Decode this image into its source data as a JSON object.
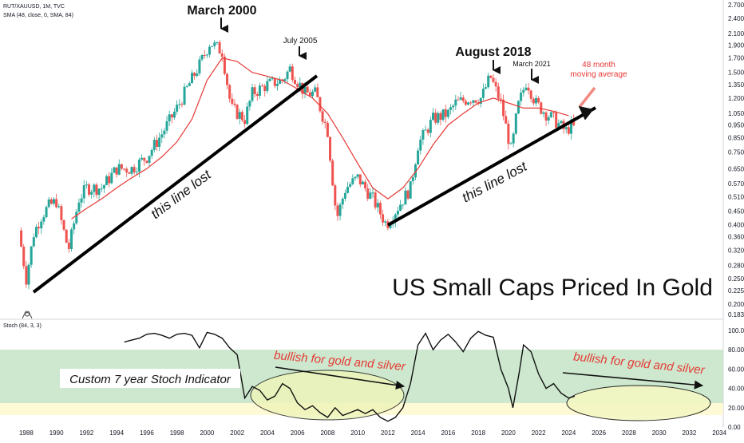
{
  "header": {
    "symbol_line": "RUT/XAUUSD, 1M, TVC",
    "sma_line": "SMA (48, close, 0, SMA, 84)",
    "stoch_line": "Stoch (84, 3, 3)"
  },
  "colors": {
    "up": "#26a69a",
    "down": "#ef5350",
    "sma": "#e53935",
    "annotation_red": "#e53935",
    "stoch_band": "#c8e6c9",
    "ellipse_fill": "#f0f4c3"
  },
  "chart_data": [
    {
      "type": "line",
      "name": "price",
      "scale": "log",
      "x": [
        1987.5,
        1988.0,
        1988.5,
        1989.0,
        1989.5,
        1990.0,
        1990.8,
        1991.5,
        1992.0,
        1993.0,
        1994.0,
        1995.0,
        1996.0,
        1997.0,
        1998.0,
        1998.8,
        1999.5,
        2000.2,
        2001.0,
        2001.6,
        2002.5,
        2003.0,
        2004.0,
        2005.0,
        2005.5,
        2006.5,
        2007.2,
        2008.0,
        2008.6,
        2009.2,
        2010.0,
        2011.0,
        2011.9,
        2012.5,
        2013.5,
        2014.0,
        2015.0,
        2016.0,
        2016.5,
        2017.5,
        2018.2,
        2018.8,
        2019.5,
        2020.2,
        2020.6,
        2021.2,
        2021.8,
        2022.5,
        2023.0,
        2023.8,
        2024.2,
        2024.5
      ],
      "y": [
        0.38,
        0.25,
        0.37,
        0.43,
        0.47,
        0.49,
        0.32,
        0.5,
        0.55,
        0.55,
        0.65,
        0.65,
        0.72,
        0.88,
        1.1,
        1.35,
        1.6,
        1.95,
        1.8,
        1.1,
        1.0,
        1.25,
        1.35,
        1.4,
        1.55,
        1.25,
        1.25,
        0.9,
        0.42,
        0.55,
        0.6,
        0.5,
        0.4,
        0.45,
        0.55,
        0.8,
        1.0,
        1.05,
        1.15,
        1.2,
        1.2,
        1.45,
        1.15,
        0.75,
        1.1,
        1.4,
        1.15,
        1.05,
        1.0,
        0.9,
        0.95,
        0.9
      ]
    },
    {
      "type": "line",
      "name": "SMA (48)",
      "x": [
        1991.0,
        1992.0,
        1993.0,
        1994.0,
        1995.0,
        1996.0,
        1997.0,
        1998.0,
        1999.0,
        2000.0,
        2001.0,
        2002.0,
        2003.0,
        2004.0,
        2005.0,
        2006.0,
        2007.0,
        2008.0,
        2009.0,
        2010.0,
        2011.0,
        2012.0,
        2013.0,
        2014.0,
        2015.0,
        2016.0,
        2017.0,
        2018.0,
        2019.0,
        2020.0,
        2021.0,
        2022.0,
        2023.0,
        2024.0
      ],
      "y": [
        0.42,
        0.46,
        0.5,
        0.55,
        0.6,
        0.65,
        0.72,
        0.82,
        1.0,
        1.4,
        1.7,
        1.65,
        1.5,
        1.45,
        1.4,
        1.3,
        1.2,
        1.05,
        0.85,
        0.68,
        0.55,
        0.5,
        0.55,
        0.65,
        0.8,
        0.95,
        1.05,
        1.15,
        1.2,
        1.15,
        1.1,
        1.1,
        1.07,
        1.03
      ]
    },
    {
      "type": "line",
      "name": "Stoch",
      "x": [
        1994.5,
        1995.0,
        1995.5,
        1996.0,
        1996.5,
        1997.0,
        1997.5,
        1998.0,
        1998.5,
        1999.0,
        1999.5,
        2000.0,
        2000.5,
        2001.0,
        2001.5,
        2002.0,
        2002.5,
        2003.0,
        2003.5,
        2004.0,
        2004.5,
        2005.0,
        2005.5,
        2006.0,
        2006.5,
        2007.0,
        2007.5,
        2008.0,
        2008.5,
        2009.0,
        2009.5,
        2010.0,
        2010.5,
        2011.0,
        2011.5,
        2012.0,
        2012.5,
        2013.0,
        2013.5,
        2014.0,
        2014.5,
        2015.0,
        2015.5,
        2016.0,
        2016.5,
        2017.0,
        2017.5,
        2018.0,
        2018.5,
        2019.0,
        2019.5,
        2020.0,
        2020.3,
        2020.7,
        2021.0,
        2021.5,
        2022.0,
        2022.5,
        2023.0,
        2023.5,
        2024.0,
        2024.4
      ],
      "y": [
        88,
        90,
        92,
        96,
        97,
        95,
        92,
        96,
        97,
        95,
        82,
        98,
        96,
        92,
        82,
        75,
        30,
        42,
        38,
        28,
        32,
        45,
        40,
        25,
        18,
        22,
        15,
        10,
        20,
        12,
        15,
        18,
        14,
        18,
        10,
        6,
        10,
        20,
        45,
        85,
        97,
        80,
        90,
        96,
        88,
        78,
        92,
        99,
        95,
        93,
        60,
        40,
        20,
        55,
        85,
        78,
        55,
        40,
        45,
        35,
        30,
        32
      ],
      "ylim": [
        0,
        100
      ]
    }
  ],
  "price_axis": [
    "2.7000",
    "2.4000",
    "2.1000",
    "1.9000",
    "1.7000",
    "1.5000",
    "1.3500",
    "1.2000",
    "1.0500",
    "0.9500",
    "0.8500",
    "0.7500",
    "0.6500",
    "0.5700",
    "0.5100",
    "0.4500",
    "0.4000",
    "0.3600",
    "0.3200",
    "0.2800",
    "0.2500",
    "0.2250",
    "0.2000",
    "0.1830"
  ],
  "stoch_axis": [
    "100.00",
    "80.00",
    "60.00",
    "40.00",
    "20.00",
    "0.00"
  ],
  "x_axis": [
    "1988",
    "1990",
    "1992",
    "1994",
    "1996",
    "1998",
    "2000",
    "2002",
    "2004",
    "2006",
    "2008",
    "2010",
    "2012",
    "2014",
    "2016",
    "2018",
    "2020",
    "2022",
    "2024",
    "2026",
    "2028",
    "2030",
    "2032",
    "2034"
  ],
  "annotations": {
    "march_2000": "March 2000",
    "july_2005": "July 2005",
    "august_2018": "August 2018",
    "march_2021": "March 2021",
    "ma_note_1": "48 month",
    "ma_note_2": "moving average",
    "line_lost_left": "this line lost",
    "line_lost_right": "this line lost",
    "title": "US Small Caps Priced In Gold",
    "stoch_label": "Custom 7 year Stoch Indicator",
    "bullish_left": "bullish for gold and silver",
    "bullish_right": "bullish for gold and silver"
  }
}
